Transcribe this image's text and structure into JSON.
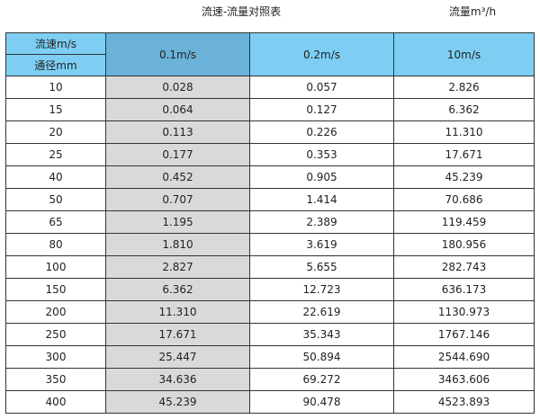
{
  "title": "流速-流量对照表",
  "unit": "流量m³/h",
  "header": {
    "speed_label": "流速m/s",
    "diameter_label": "通径mm",
    "columns": [
      "0.1m/s",
      "0.2m/s",
      "10m/s"
    ]
  },
  "colors": {
    "header": "#7ecef4",
    "header_highlight": "#6ab2d8",
    "highlight_column": "#d9d9d9"
  },
  "rows": [
    [
      "10",
      "0.028",
      "0.057",
      "2.826"
    ],
    [
      "15",
      "0.064",
      "0.127",
      "6.362"
    ],
    [
      "20",
      "0.113",
      "0.226",
      "11.310"
    ],
    [
      "25",
      "0.177",
      "0.353",
      "17.671"
    ],
    [
      "40",
      "0.452",
      "0.905",
      "45.239"
    ],
    [
      "50",
      "0.707",
      "1.414",
      "70.686"
    ],
    [
      "65",
      "1.195",
      "2.389",
      "119.459"
    ],
    [
      "80",
      "1.810",
      "3.619",
      "180.956"
    ],
    [
      "100",
      "2.827",
      "5.655",
      "282.743"
    ],
    [
      "150",
      "6.362",
      "12.723",
      "636.173"
    ],
    [
      "200",
      "11.310",
      "22.619",
      "1130.973"
    ],
    [
      "250",
      "17.671",
      "35.343",
      "1767.146"
    ],
    [
      "300",
      "25.447",
      "50.894",
      "2544.690"
    ],
    [
      "350",
      "34.636",
      "69.272",
      "3463.606"
    ],
    [
      "400",
      "45.239",
      "90.478",
      "4523.893"
    ]
  ]
}
